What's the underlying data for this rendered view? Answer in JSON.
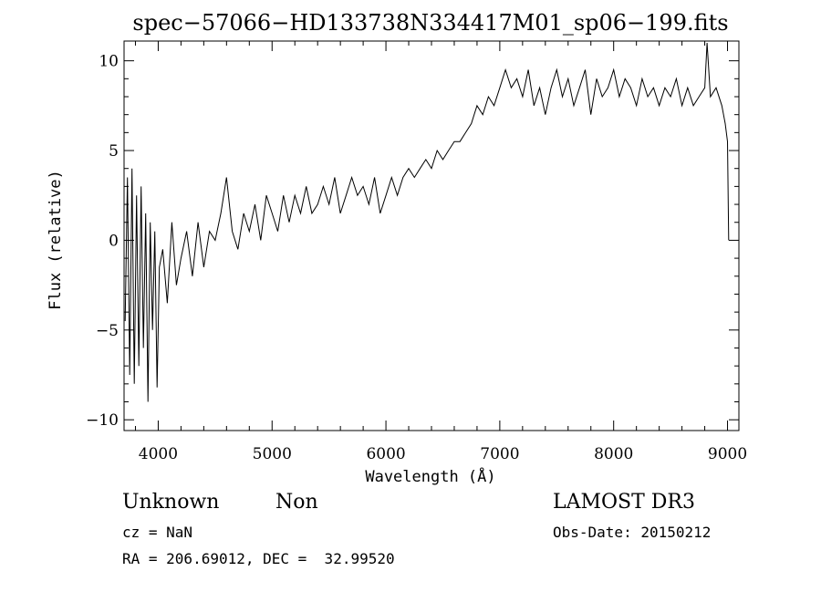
{
  "chart_data": {
    "type": "line",
    "title": "spec−57066−HD133738N334417M01_sp06−199.fits",
    "xlabel": "Wavelength (Å)",
    "ylabel": "Flux (relative)",
    "xlim": [
      3700,
      9100
    ],
    "ylim": [
      -10.6,
      11.1
    ],
    "x_ticks": [
      4000,
      5000,
      6000,
      7000,
      8000,
      9000
    ],
    "x_tick_labels": [
      "4000",
      "5000",
      "6000",
      "7000",
      "8000",
      "9000"
    ],
    "y_ticks": [
      -10,
      -5,
      0,
      5,
      10
    ],
    "y_tick_labels": [
      "−10",
      "−5",
      "0",
      "5",
      "10"
    ],
    "grid": false,
    "series": [
      {
        "color": "#000000",
        "x": [
          3710,
          3730,
          3750,
          3770,
          3790,
          3810,
          3830,
          3850,
          3870,
          3890,
          3910,
          3930,
          3950,
          3970,
          3990,
          4010,
          4040,
          4080,
          4120,
          4160,
          4200,
          4250,
          4300,
          4350,
          4400,
          4450,
          4500,
          4550,
          4600,
          4650,
          4700,
          4750,
          4800,
          4850,
          4900,
          4950,
          5000,
          5050,
          5100,
          5150,
          5200,
          5250,
          5300,
          5350,
          5400,
          5450,
          5500,
          5550,
          5600,
          5650,
          5700,
          5750,
          5800,
          5850,
          5900,
          5950,
          6000,
          6050,
          6100,
          6150,
          6200,
          6250,
          6300,
          6350,
          6400,
          6450,
          6500,
          6550,
          6600,
          6650,
          6700,
          6750,
          6800,
          6850,
          6900,
          6950,
          7000,
          7050,
          7100,
          7150,
          7200,
          7250,
          7300,
          7350,
          7400,
          7450,
          7500,
          7550,
          7600,
          7650,
          7700,
          7750,
          7800,
          7850,
          7900,
          7950,
          8000,
          8050,
          8100,
          8150,
          8200,
          8250,
          8300,
          8350,
          8400,
          8450,
          8500,
          8550,
          8600,
          8650,
          8700,
          8750,
          8800,
          8820,
          8850,
          8900,
          8950,
          8980,
          9000,
          9010
        ],
        "y": [
          -4.5,
          3.5,
          -7.5,
          4.0,
          -8.0,
          2.5,
          -7.0,
          3.0,
          -6.0,
          1.5,
          -9.0,
          1.0,
          -5.0,
          0.5,
          -8.2,
          -1.5,
          -0.5,
          -3.5,
          1.0,
          -2.5,
          -1.0,
          0.5,
          -2.0,
          1.0,
          -1.5,
          0.5,
          0.0,
          1.5,
          3.5,
          0.5,
          -0.5,
          1.5,
          0.5,
          2.0,
          0.0,
          2.5,
          1.5,
          0.5,
          2.5,
          1.0,
          2.5,
          1.5,
          3.0,
          1.5,
          2.0,
          3.0,
          2.0,
          3.5,
          1.5,
          2.5,
          3.5,
          2.5,
          3.0,
          2.0,
          3.5,
          1.5,
          2.5,
          3.5,
          2.5,
          3.5,
          4.0,
          3.5,
          4.0,
          4.5,
          4.0,
          5.0,
          4.5,
          5.0,
          5.5,
          5.5,
          6.0,
          6.5,
          7.5,
          7.0,
          8.0,
          7.5,
          8.5,
          9.5,
          8.5,
          9.0,
          8.0,
          9.5,
          7.5,
          8.5,
          7.0,
          8.5,
          9.5,
          8.0,
          9.0,
          7.5,
          8.5,
          9.5,
          7.0,
          9.0,
          8.0,
          8.5,
          9.5,
          8.0,
          9.0,
          8.5,
          7.5,
          9.0,
          8.0,
          8.5,
          7.5,
          8.5,
          8.0,
          9.0,
          7.5,
          8.5,
          7.5,
          8.0,
          8.5,
          11.0,
          8.0,
          8.5,
          7.5,
          6.5,
          5.5,
          0.0
        ]
      }
    ]
  },
  "info": {
    "object_class": "Unknown",
    "subclass": "Non",
    "survey": "LAMOST DR3",
    "cz": "cz = NaN",
    "obs_date": "Obs-Date: 20150212",
    "coords": "RA = 206.69012, DEC =  32.99520"
  }
}
